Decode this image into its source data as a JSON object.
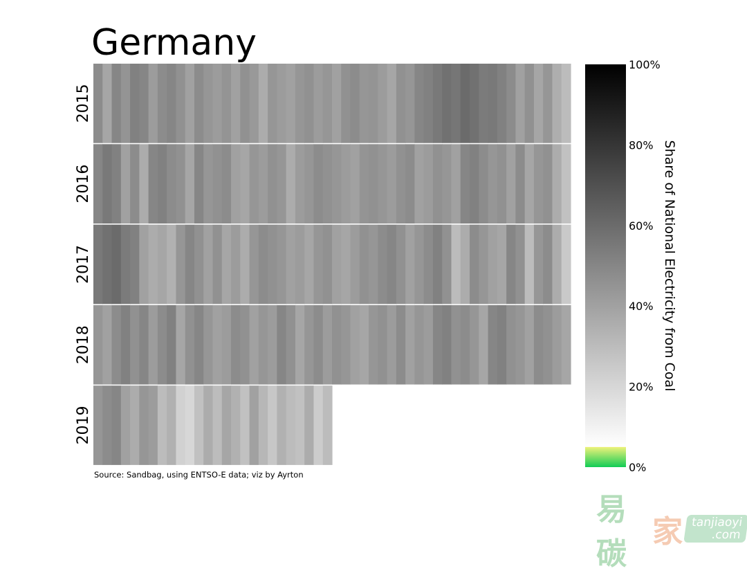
{
  "chart_data": {
    "type": "heatmap",
    "title": "Germany",
    "source": "Source: Sandbag, using ENTSO-E data; viz by Ayrton",
    "colorbar": {
      "label": "Share of National Electricity from Coal",
      "ticks": [
        "0%",
        "20%",
        "40%",
        "60%",
        "80%",
        "100%"
      ],
      "range": [
        0,
        100
      ],
      "low_colors": [
        "#11cc55",
        "#eef27a"
      ],
      "low_threshold": 5,
      "gray_from": "#ffffff",
      "gray_to": "#000000"
    },
    "rows": [
      {
        "year": "2015",
        "values": [
          48,
          38,
          50,
          45,
          52,
          50,
          42,
          48,
          50,
          46,
          40,
          48,
          44,
          42,
          45,
          40,
          46,
          43,
          36,
          44,
          42,
          40,
          44,
          46,
          42,
          44,
          40,
          46,
          48,
          44,
          45,
          42,
          38,
          46,
          44,
          50,
          52,
          55,
          58,
          56,
          60,
          58,
          54,
          55,
          52,
          48,
          40,
          46,
          38,
          44,
          35,
          30
        ]
      },
      {
        "year": "2016",
        "values": [
          50,
          55,
          52,
          40,
          48,
          36,
          50,
          52,
          48,
          46,
          38,
          50,
          44,
          46,
          48,
          40,
          38,
          44,
          42,
          46,
          44,
          36,
          42,
          44,
          48,
          46,
          44,
          42,
          40,
          45,
          46,
          44,
          42,
          46,
          48,
          40,
          42,
          46,
          44,
          40,
          50,
          52,
          48,
          44,
          46,
          40,
          48,
          38,
          44,
          46,
          36,
          28
        ]
      },
      {
        "year": "2017",
        "values": [
          55,
          58,
          60,
          54,
          52,
          40,
          36,
          38,
          34,
          44,
          50,
          46,
          40,
          46,
          38,
          42,
          36,
          44,
          48,
          46,
          44,
          40,
          42,
          38,
          44,
          46,
          40,
          38,
          42,
          46,
          44,
          48,
          50,
          46,
          40,
          44,
          48,
          52,
          46,
          30,
          36,
          48,
          44,
          40,
          38,
          50,
          46,
          30,
          44,
          48,
          36,
          25
        ]
      },
      {
        "year": "2018",
        "values": [
          44,
          40,
          48,
          52,
          46,
          50,
          42,
          48,
          52,
          38,
          46,
          50,
          44,
          40,
          42,
          48,
          46,
          40,
          44,
          42,
          50,
          46,
          38,
          44,
          48,
          42,
          46,
          44,
          40,
          38,
          44,
          46,
          42,
          48,
          40,
          44,
          42,
          50,
          52,
          46,
          48,
          44,
          38,
          50,
          52,
          46,
          44,
          40,
          48,
          46,
          42,
          38
        ]
      },
      {
        "year": "2019",
        "values": [
          44,
          48,
          50,
          40,
          36,
          44,
          42,
          30,
          34,
          22,
          20,
          28,
          36,
          30,
          38,
          34,
          28,
          40,
          32,
          26,
          34,
          30,
          28,
          36,
          24,
          30
        ]
      }
    ],
    "periods_per_year": 52
  },
  "watermark": {
    "chars": "易碳家",
    "domain1": "tanjiaoyi",
    "domain2": ".com"
  }
}
